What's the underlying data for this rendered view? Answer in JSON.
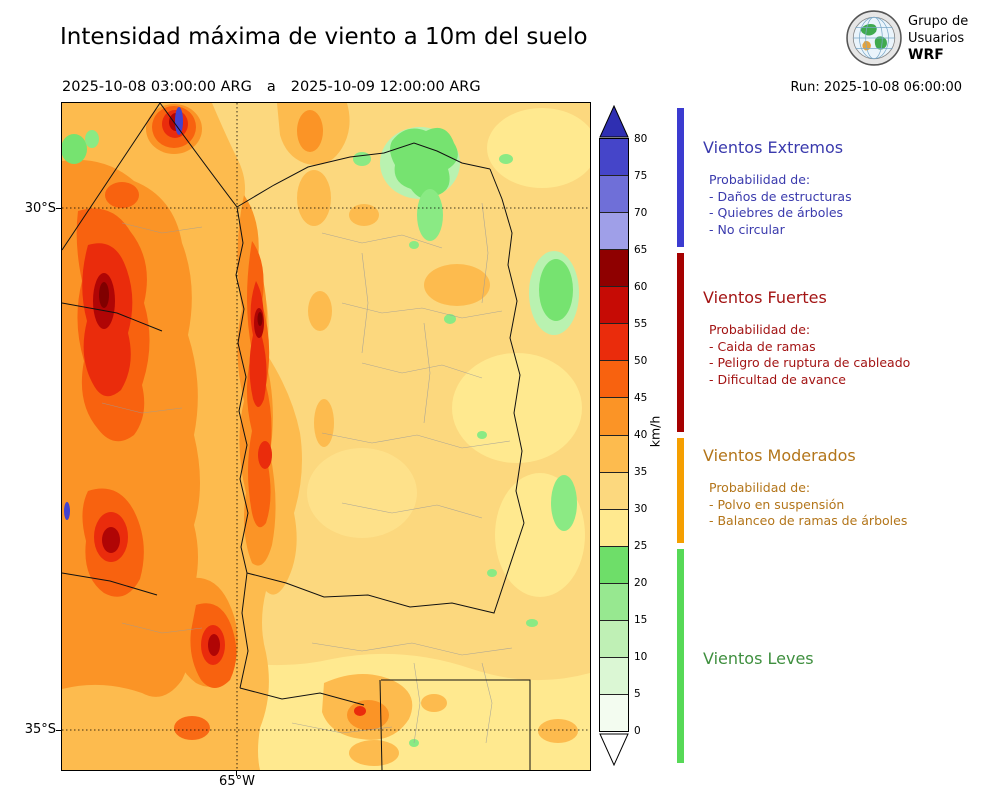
{
  "header": {
    "title": "Intensidad máxima de viento a 10m del suelo",
    "period_start": "2025-10-08 03:00:00 ARG",
    "period_separator": "a",
    "period_end": "2025-10-09 12:00:00 ARG",
    "run_label": "Run: 2025-10-08 06:00:00",
    "logo_line1": "Grupo de",
    "logo_line2": "Usuarios",
    "logo_line3": "WRF"
  },
  "map": {
    "lat_top_label": "30°S",
    "lat_bottom_label": "35°S",
    "lon_label": "65°W"
  },
  "colorbar": {
    "unit": "km/h",
    "ticks": [
      0,
      5,
      10,
      15,
      20,
      25,
      30,
      35,
      40,
      45,
      50,
      55,
      60,
      65,
      70,
      75,
      80
    ],
    "band_colors_low_to_high": [
      "#f3fcf0",
      "#dbf7d4",
      "#bff0b5",
      "#97e890",
      "#6ede69",
      "#ffe98f",
      "#fcd87e",
      "#fdbb4e",
      "#fb9426",
      "#f8620f",
      "#ea2c0c",
      "#c60b05",
      "#8f0000",
      "#9f9fe8",
      "#6f6fd8",
      "#4545c9"
    ],
    "above_color": "#2f2fb2",
    "below_color": "#ffffff"
  },
  "legend": {
    "categories": [
      {
        "name": "Vientos Extremos",
        "text_color": "#3a3aad",
        "strip_color": "#3b3bd0",
        "prob_title": "Probabilidad de:",
        "items": [
          "- Daños de estructuras",
          "- Quiebres de árboles",
          "- No circular"
        ]
      },
      {
        "name": "Vientos Fuertes",
        "text_color": "#a31414",
        "strip_color": "#a50000",
        "prob_title": "Probabilidad de:",
        "items": [
          "- Caida de ramas",
          "- Peligro de ruptura de cableado",
          "- Dificultad de avance"
        ]
      },
      {
        "name": "Vientos Moderados",
        "text_color": "#b3751a",
        "strip_color": "#f59f00",
        "prob_title": "Probabilidad de:",
        "items": [
          "- Polvo en suspensión",
          "- Balanceo de ramas de árboles"
        ]
      },
      {
        "name": "Vientos Leves",
        "text_color": "#3f8f3f",
        "strip_color": "#57d957",
        "prob_title": "",
        "items": []
      }
    ]
  },
  "chart_data": {
    "type": "heatmap",
    "title": "Intensidad máxima de viento a 10m del suelo",
    "period": "2025-10-08 03:00:00 ARG a 2025-10-09 12:00:00 ARG",
    "run": "2025-10-08 06:00:00",
    "unit": "km/h",
    "colorbar_range": [
      0,
      80
    ],
    "colorbar_step": 5,
    "colorbar_extend": "both",
    "lat_ticks": [
      "30°S",
      "35°S"
    ],
    "lon_ticks": [
      "65°W"
    ],
    "wind_categories": [
      {
        "name": "Vientos Leves",
        "range_kmh": [
          0,
          25
        ]
      },
      {
        "name": "Vientos Moderados",
        "range_kmh": [
          25,
          40
        ]
      },
      {
        "name": "Vientos Fuertes",
        "range_kmh": [
          40,
          65
        ]
      },
      {
        "name": "Vientos Extremos",
        "range_kmh": [
          65,
          80
        ]
      }
    ]
  }
}
